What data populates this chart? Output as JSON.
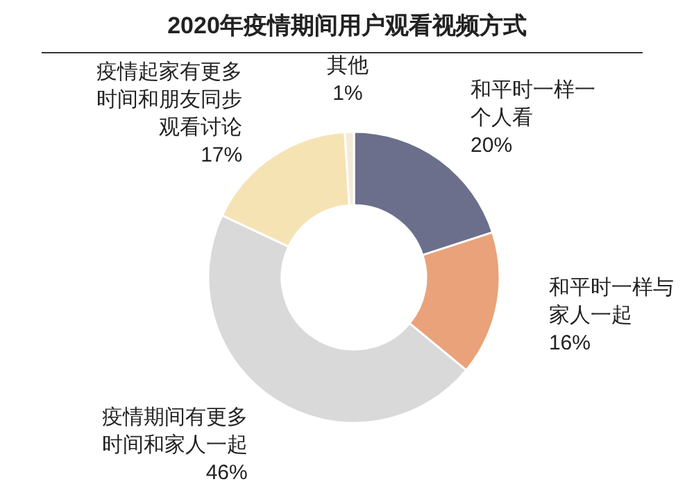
{
  "chart_data": {
    "type": "donut",
    "title": "2020年疫情期间用户观看视频方式",
    "categories": [
      "和平时一样一个人看",
      "和平时一样与家人一起",
      "疫情期间有更多时间和家人一起",
      "疫情起家有更多时间和朋友同步观看讨论",
      "其他"
    ],
    "values": [
      20,
      16,
      46,
      17,
      1
    ],
    "colors": [
      "#6b6f8c",
      "#e9a27a",
      "#d9d9d9",
      "#f6e3b4",
      "#f3ead8"
    ],
    "value_labels": [
      "20%",
      "16%",
      "46%",
      "17%",
      "1%"
    ]
  }
}
